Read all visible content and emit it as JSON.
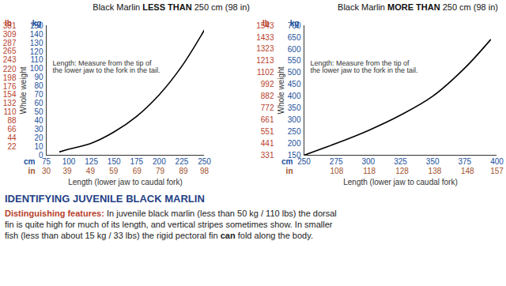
{
  "chart_data": [
    {
      "type": "line",
      "title": "Black Marlin LESS THAN 250 cm (98 in)",
      "title_emphasis": "LESS THAN",
      "annotation": "Length: Measure from the tip of\nthe lower jaw to the fork in the tail.",
      "y_label": "Whole weight",
      "x_label": "Length (lower jaw to caudal fork)",
      "x_unit": "cm",
      "x2_unit": "in",
      "y_unit": "kg",
      "y2_unit": "lb",
      "x": [
        90,
        100,
        125,
        150,
        175,
        200,
        225,
        250
      ],
      "values": [
        4,
        7,
        14,
        27,
        45,
        70,
        103,
        145
      ],
      "color": "#000000",
      "grid": false,
      "xlim": [
        75,
        250
      ],
      "xticks": [
        75,
        100,
        125,
        150,
        175,
        200,
        225,
        250
      ],
      "x2lim": [
        30,
        98
      ],
      "x2ticks": [
        30,
        39,
        49,
        59,
        69,
        79,
        89,
        98
      ],
      "ylim": [
        0,
        150
      ],
      "yticks": [
        0,
        10,
        20,
        30,
        40,
        50,
        60,
        70,
        80,
        90,
        100,
        110,
        120,
        130,
        140,
        150
      ],
      "y2lim": [
        0,
        331
      ],
      "y2ticks": [
        22,
        44,
        66,
        88,
        110,
        132,
        154,
        176,
        198,
        220,
        243,
        265,
        287,
        309,
        331
      ]
    },
    {
      "type": "line",
      "title": "Black Marlin MORE THAN 250 cm (98 in)",
      "title_emphasis": "MORE THAN",
      "annotation": "Length: Measure from the tip of\nthe lower jaw to the fork in the tail.",
      "y_label": "Whole weight",
      "x_label": "Length (lower jaw to caudal fork)",
      "x_unit": "cm",
      "x2_unit": "in",
      "y_unit": "kg",
      "y2_unit": "lb",
      "x": [
        250,
        275,
        300,
        325,
        350,
        375,
        395
      ],
      "values": [
        150,
        200,
        255,
        320,
        400,
        520,
        640
      ],
      "color": "#000000",
      "grid": false,
      "xlim": [
        250,
        400
      ],
      "xticks": [
        250,
        275,
        300,
        325,
        350,
        375,
        400
      ],
      "x2lim": [
        98,
        157
      ],
      "x2ticks": [
        108,
        118,
        128,
        138,
        148,
        157
      ],
      "ylim": [
        150,
        700
      ],
      "yticks": [
        150,
        200,
        250,
        300,
        350,
        400,
        450,
        500,
        550,
        600,
        650,
        700
      ],
      "y2lim": [
        331,
        1543
      ],
      "y2ticks": [
        331,
        441,
        551,
        661,
        772,
        882,
        992,
        1102,
        1213,
        1323,
        1433,
        1543
      ]
    }
  ],
  "section": {
    "heading": "IDENTIFYING JUVENILE BLACK MARLIN",
    "lead": "Distinguishing features:",
    "body": [
      " In juvenile black marlin (less than 50 kg / 110 lbs) the dorsal fin is quite high for much of its length, and vertical stripes sometimes show. In smaller fish (less than about 15 kg / 33 lbs) the rigid pectoral fin ",
      "can",
      " fold along the body."
    ]
  }
}
